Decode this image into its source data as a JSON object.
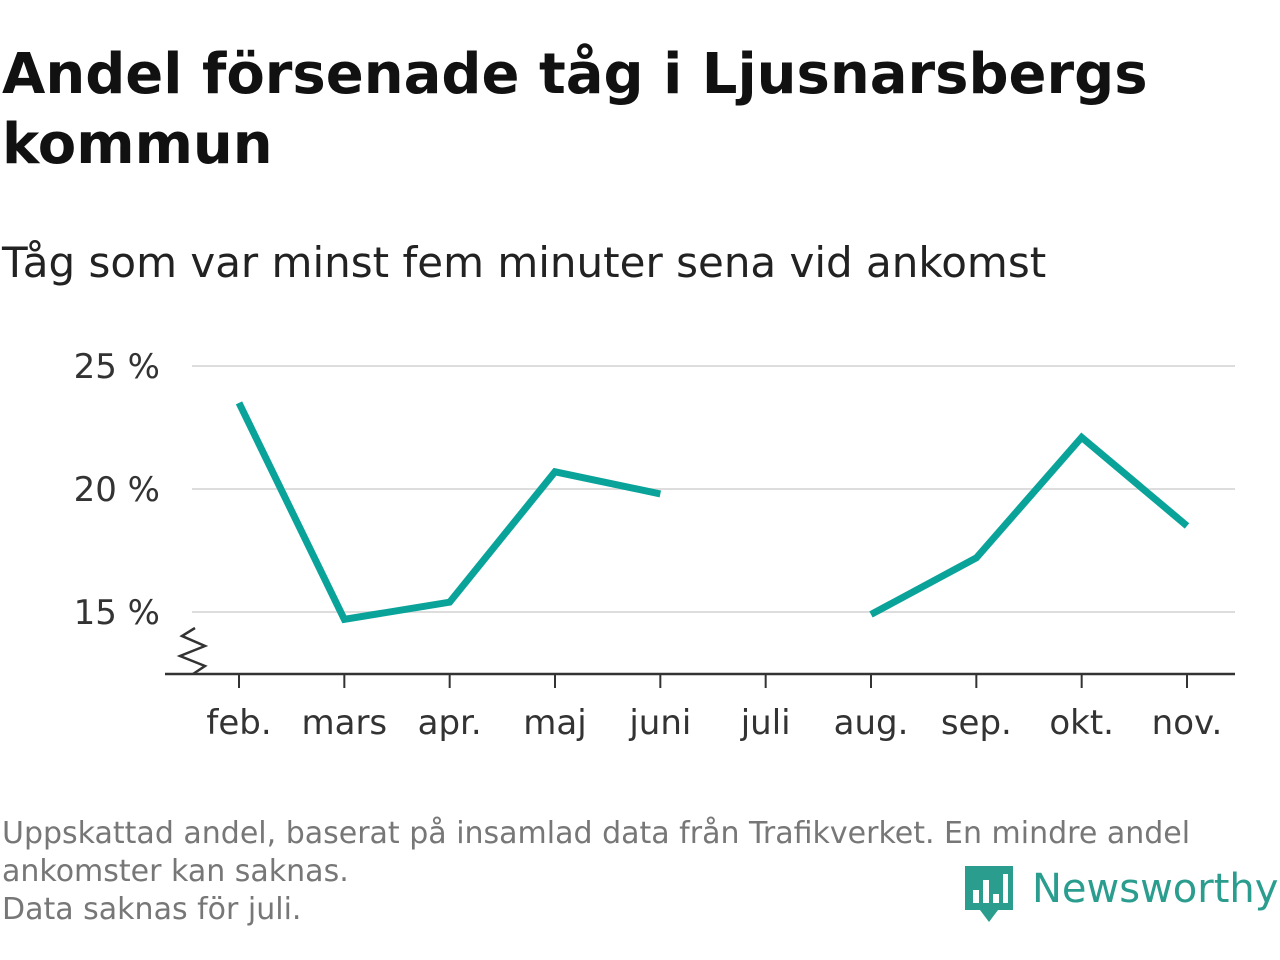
{
  "title": "Andel försenade tåg i Ljusnarsbergs kommun",
  "subtitle": "Tåg som var minst fem minuter sena vid ankomst",
  "footnote_lines": [
    "Uppskattad andel, baserat på insamlad data från Trafikverket. En mindre andel",
    "ankomster kan saknas.",
    "Data saknas för juli."
  ],
  "brand": {
    "name": "Newsworthy",
    "icon": "newsworthy-logo-icon"
  },
  "colors": {
    "line": "#0aa39a",
    "grid": "#dddddd",
    "axis": "#333333",
    "brand": "#2a9d8f"
  },
  "chart_data": {
    "type": "line",
    "categories": [
      "feb.",
      "mars",
      "apr.",
      "maj",
      "juni",
      "juli",
      "aug.",
      "sep.",
      "okt.",
      "nov."
    ],
    "series": [
      {
        "values": [
          23.5,
          14.7,
          15.4,
          20.7,
          19.8,
          null,
          14.9,
          17.2,
          22.1,
          18.5
        ]
      }
    ],
    "yticks": [
      "15 %",
      "20 %",
      "25 %"
    ],
    "ytick_values": [
      15,
      20,
      25
    ],
    "ylim": [
      12.5,
      25
    ],
    "y_axis_broken": true,
    "grid": true,
    "legend": false
  }
}
